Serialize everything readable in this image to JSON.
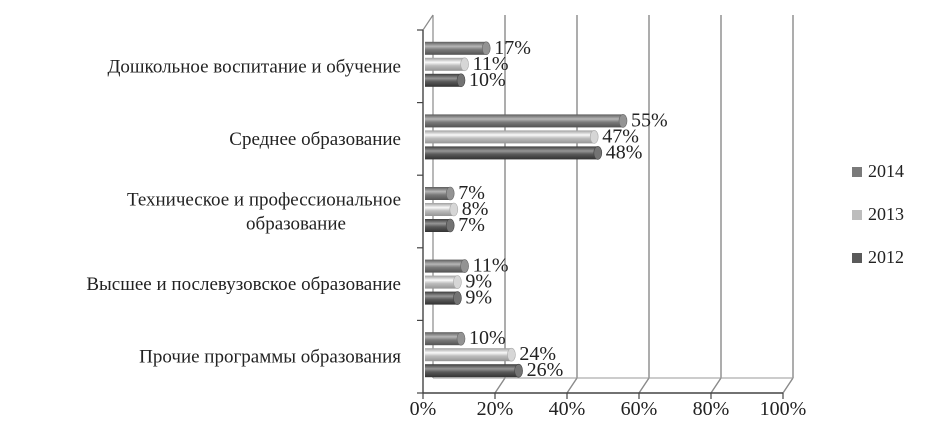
{
  "chart_data": {
    "type": "bar",
    "orientation": "horizontal",
    "style": "3d-cylinder",
    "categories": [
      [
        "Дошкольное воспитание и обучение"
      ],
      [
        "Среднее образование"
      ],
      [
        "Техническое и профессиональное",
        "образование"
      ],
      [
        "Высшее и послевузовское образование"
      ],
      [
        "Прочие программы образования"
      ]
    ],
    "series": [
      {
        "name": "2014",
        "color": "#7a7a7a",
        "values": [
          17,
          55,
          7,
          11,
          10
        ],
        "labels": [
          "17%",
          "55%",
          "7%",
          "11%",
          "10%"
        ]
      },
      {
        "name": "2013",
        "color": "#bdbdbd",
        "values": [
          11,
          47,
          8,
          9,
          24
        ],
        "labels": [
          "11%",
          "47%",
          "8%",
          "9%",
          "24%"
        ]
      },
      {
        "name": "2012",
        "color": "#5a5a5a",
        "values": [
          10,
          48,
          7,
          9,
          26
        ],
        "labels": [
          "10%",
          "48%",
          "7%",
          "9%",
          "26%"
        ]
      }
    ],
    "xlim": [
      0,
      100
    ],
    "xticks": [
      "0%",
      "20%",
      "40%",
      "60%",
      "80%",
      "100%"
    ],
    "title": "",
    "xlabel": "",
    "ylabel": "",
    "grid": true,
    "legend": {
      "position": "right",
      "order": [
        "2014",
        "2013",
        "2012"
      ]
    }
  }
}
